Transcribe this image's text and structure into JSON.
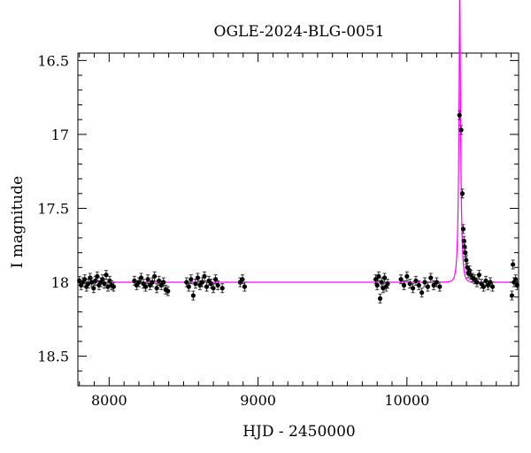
{
  "chart_data": {
    "type": "scatter",
    "title": "OGLE-2024-BLG-0051",
    "xlabel": "HJD - 2450000",
    "ylabel": "I magnitude",
    "xlim": [
      7790,
      10750
    ],
    "ylim": [
      18.7,
      16.45
    ],
    "y_inverted": true,
    "grid": false,
    "legend": "none",
    "x_ticks": [
      8000,
      9000,
      10000
    ],
    "x_tick_labels": [
      "8000",
      "9000",
      "10000"
    ],
    "y_ticks": [
      16.5,
      17,
      17.5,
      18,
      18.5
    ],
    "y_tick_labels": [
      "16.5",
      "17",
      "17.5",
      "18",
      "18.5"
    ],
    "colors": {
      "points": "#000000",
      "model": "#ff00ff"
    },
    "model": {
      "baseline": 18.0,
      "t0": 10355,
      "peak_mag": 16.87,
      "tE": 15.5,
      "u0": 0.145
    },
    "series": [
      {
        "values": [
          {
            "x": 7800,
            "y": 17.99
          },
          {
            "x": 7812,
            "y": 18.02
          },
          {
            "x": 7824,
            "y": 18.0
          },
          {
            "x": 7836,
            "y": 17.98
          },
          {
            "x": 7848,
            "y": 18.03
          },
          {
            "x": 7860,
            "y": 18.01
          },
          {
            "x": 7872,
            "y": 17.97
          },
          {
            "x": 7884,
            "y": 18.0
          },
          {
            "x": 7896,
            "y": 18.04
          },
          {
            "x": 7908,
            "y": 17.99
          },
          {
            "x": 7920,
            "y": 17.96
          },
          {
            "x": 7932,
            "y": 18.02
          },
          {
            "x": 7944,
            "y": 18.0
          },
          {
            "x": 7956,
            "y": 17.98
          },
          {
            "x": 7968,
            "y": 18.01
          },
          {
            "x": 7980,
            "y": 17.95
          },
          {
            "x": 7992,
            "y": 18.03
          },
          {
            "x": 8004,
            "y": 17.99
          },
          {
            "x": 8016,
            "y": 18.02
          },
          {
            "x": 8030,
            "y": 18.03
          },
          {
            "x": 8170,
            "y": 17.99
          },
          {
            "x": 8185,
            "y": 18.02
          },
          {
            "x": 8200,
            "y": 18.0
          },
          {
            "x": 8215,
            "y": 17.97
          },
          {
            "x": 8230,
            "y": 18.01
          },
          {
            "x": 8245,
            "y": 18.03
          },
          {
            "x": 8260,
            "y": 17.98
          },
          {
            "x": 8275,
            "y": 18.02
          },
          {
            "x": 8290,
            "y": 18.0
          },
          {
            "x": 8305,
            "y": 17.96
          },
          {
            "x": 8320,
            "y": 18.04
          },
          {
            "x": 8335,
            "y": 17.99
          },
          {
            "x": 8350,
            "y": 18.02
          },
          {
            "x": 8365,
            "y": 18.0
          },
          {
            "x": 8380,
            "y": 18.05
          },
          {
            "x": 8395,
            "y": 18.06
          },
          {
            "x": 8520,
            "y": 18.0
          },
          {
            "x": 8535,
            "y": 18.03
          },
          {
            "x": 8550,
            "y": 17.98
          },
          {
            "x": 8565,
            "y": 18.09
          },
          {
            "x": 8580,
            "y": 18.01
          },
          {
            "x": 8595,
            "y": 17.97
          },
          {
            "x": 8610,
            "y": 18.02
          },
          {
            "x": 8625,
            "y": 18.0
          },
          {
            "x": 8640,
            "y": 17.96
          },
          {
            "x": 8655,
            "y": 18.03
          },
          {
            "x": 8670,
            "y": 17.99
          },
          {
            "x": 8685,
            "y": 18.01
          },
          {
            "x": 8700,
            "y": 18.04
          },
          {
            "x": 8715,
            "y": 17.98
          },
          {
            "x": 8730,
            "y": 18.02
          },
          {
            "x": 8760,
            "y": 18.04
          },
          {
            "x": 8880,
            "y": 18.0
          },
          {
            "x": 8895,
            "y": 17.98
          },
          {
            "x": 8910,
            "y": 18.03
          },
          {
            "x": 9790,
            "y": 17.98
          },
          {
            "x": 9800,
            "y": 18.02
          },
          {
            "x": 9810,
            "y": 17.96
          },
          {
            "x": 9820,
            "y": 18.11
          },
          {
            "x": 9830,
            "y": 18.0
          },
          {
            "x": 9840,
            "y": 18.04
          },
          {
            "x": 9850,
            "y": 17.97
          },
          {
            "x": 9860,
            "y": 18.03
          },
          {
            "x": 9870,
            "y": 18.01
          },
          {
            "x": 9960,
            "y": 17.98
          },
          {
            "x": 9980,
            "y": 18.02
          },
          {
            "x": 10000,
            "y": 17.96
          },
          {
            "x": 10020,
            "y": 18.01
          },
          {
            "x": 10040,
            "y": 18.04
          },
          {
            "x": 10060,
            "y": 17.99
          },
          {
            "x": 10080,
            "y": 18.02
          },
          {
            "x": 10100,
            "y": 18.07
          },
          {
            "x": 10120,
            "y": 18.0
          },
          {
            "x": 10140,
            "y": 18.03
          },
          {
            "x": 10160,
            "y": 17.97
          },
          {
            "x": 10180,
            "y": 18.02
          },
          {
            "x": 10200,
            "y": 18.0
          },
          {
            "x": 10220,
            "y": 18.03
          },
          {
            "x": 10353,
            "y": 16.87
          },
          {
            "x": 10364,
            "y": 16.97
          },
          {
            "x": 10372,
            "y": 17.4
          },
          {
            "x": 10378,
            "y": 17.64
          },
          {
            "x": 10383,
            "y": 17.72
          },
          {
            "x": 10387,
            "y": 17.76
          },
          {
            "x": 10392,
            "y": 17.8
          },
          {
            "x": 10398,
            "y": 17.85
          },
          {
            "x": 10405,
            "y": 17.9
          },
          {
            "x": 10412,
            "y": 17.94
          },
          {
            "x": 10420,
            "y": 17.92
          },
          {
            "x": 10430,
            "y": 17.95
          },
          {
            "x": 10440,
            "y": 17.97
          },
          {
            "x": 10455,
            "y": 17.98
          },
          {
            "x": 10470,
            "y": 18.0
          },
          {
            "x": 10485,
            "y": 17.95
          },
          {
            "x": 10500,
            "y": 18.01
          },
          {
            "x": 10515,
            "y": 18.03
          },
          {
            "x": 10530,
            "y": 17.99
          },
          {
            "x": 10545,
            "y": 18.02
          },
          {
            "x": 10560,
            "y": 18.0
          },
          {
            "x": 10575,
            "y": 18.03
          },
          {
            "x": 10705,
            "y": 18.09
          },
          {
            "x": 10712,
            "y": 17.88
          },
          {
            "x": 10720,
            "y": 18.0
          },
          {
            "x": 10730,
            "y": 17.98
          },
          {
            "x": 10740,
            "y": 18.02
          }
        ],
        "error": 0.03
      }
    ]
  }
}
